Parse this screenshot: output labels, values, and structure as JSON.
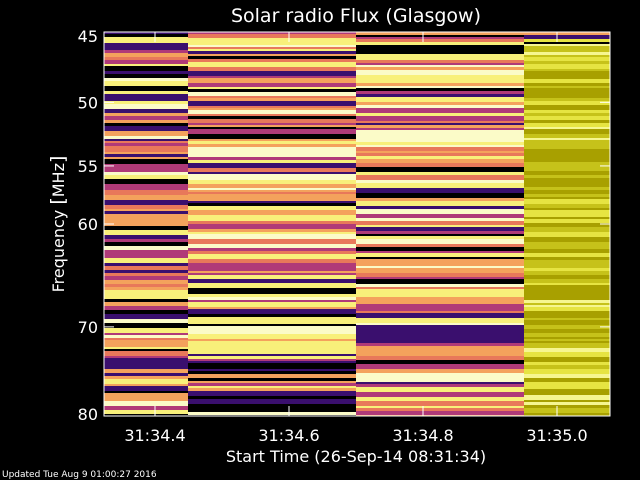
{
  "chart_data": {
    "type": "heatmap",
    "title": "Solar radio Flux (Glasgow)",
    "xlabel": "Start Time (26-Sep-14 08:31:34)",
    "ylabel_main": "Frequency ",
    "ylabel_unit": "MHz",
    "x_ticks": [
      "31:34.4",
      "31:34.6",
      "31:34.8",
      "31:35.0"
    ],
    "y_ticks": [
      "45",
      "50",
      "55",
      "60",
      "70",
      "80"
    ],
    "y_tick_values": [
      45,
      50,
      55,
      60,
      70,
      80
    ],
    "ylim": [
      45,
      80
    ],
    "y_scale": "log",
    "time_blocks": [
      {
        "palette": "inferno",
        "seed": 11
      },
      {
        "palette": "inferno",
        "seed": 23
      },
      {
        "palette": "inferno",
        "seed": 37
      },
      {
        "palette": "olive",
        "seed": 53
      }
    ],
    "colors": {
      "black": "#000000",
      "purple": "#3a0f6e",
      "magenta": "#b03a78",
      "salmon": "#e8785a",
      "orange": "#f4a25c",
      "yellow": "#f8f07a",
      "pale": "#fbfbc8",
      "olive_dark": "#a8a000",
      "olive_mid": "#c6c21a",
      "olive_light": "#e6e442",
      "olive_bright": "#f6f690"
    }
  },
  "footer": {
    "updated": "Updated Tue Aug  9 01:00:27 2016"
  }
}
